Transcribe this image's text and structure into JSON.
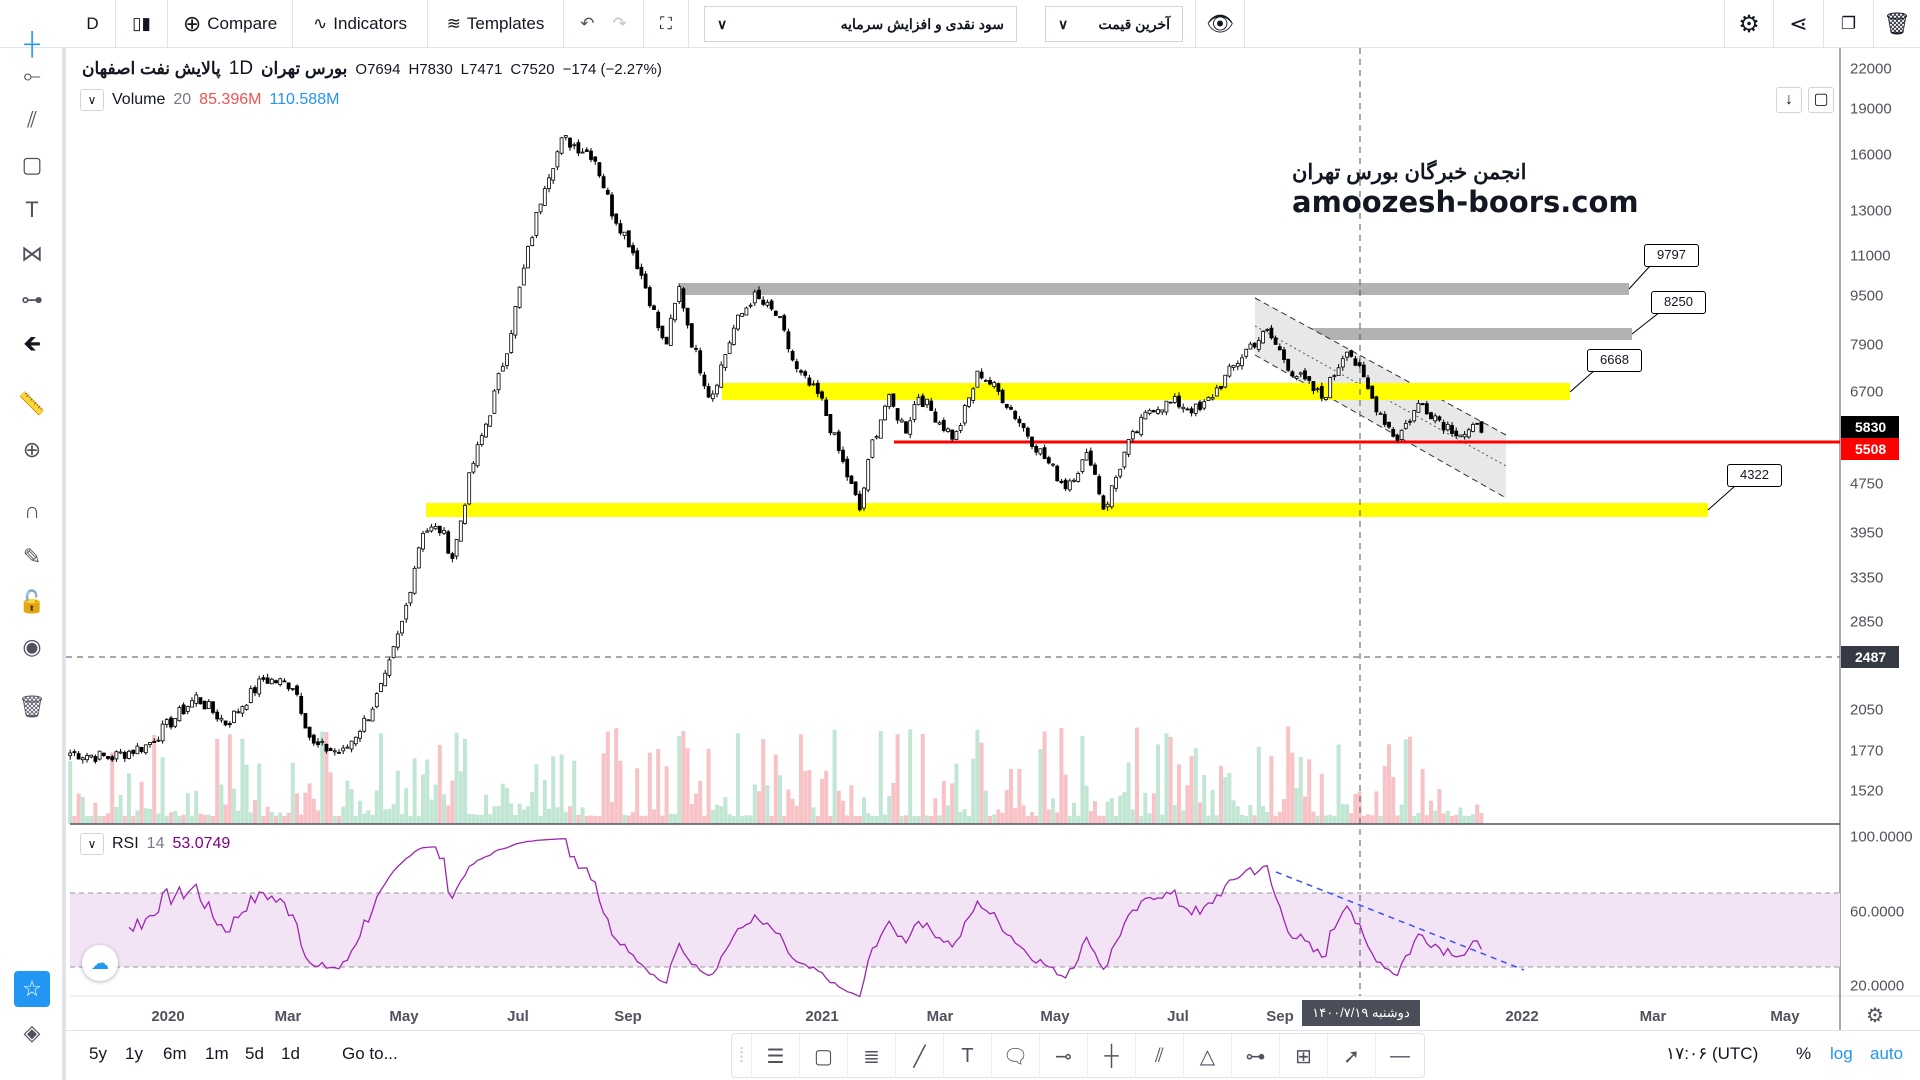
{
  "toolbar": {
    "interval": "D",
    "compare": "Compare",
    "indicators": "Indicators",
    "templates": "Templates",
    "layout_select": "سود نقدی و افزایش سرمایه",
    "price_select": "آخرین قیمت"
  },
  "legend": {
    "symbol": "پالایش نفت اصفهان",
    "interval": "1D",
    "exchange": "بورس تهران",
    "open": "O7694",
    "high": "H7830",
    "low": "L7471",
    "close": "C7520",
    "change": "−174 (−2.27%)",
    "volume_label": "Volume",
    "volume_len": "20",
    "volume_val1": "85.396M",
    "volume_val2": "110.588M"
  },
  "watermark": {
    "line1": "انجمن خبرگان بورس تهران",
    "line2": "amoozesh-boors.com"
  },
  "price_axis": [
    "22000",
    "19000",
    "16000",
    "13000",
    "11000",
    "9500",
    "7900",
    "6700",
    "4750",
    "3950",
    "3350",
    "2850",
    "2050",
    "1770",
    "1520"
  ],
  "price_badges": {
    "last": "5830",
    "line": "5508",
    "cross": "2487"
  },
  "callouts": [
    "9797",
    "8250",
    "6668",
    "4322"
  ],
  "rsi": {
    "label": "RSI",
    "len": "14",
    "value": "53.0749",
    "axis": [
      "100.0000",
      "60.0000",
      "20.0000"
    ]
  },
  "time_axis": [
    "2020",
    "Mar",
    "May",
    "Jul",
    "Sep",
    "2021",
    "Mar",
    "May",
    "Jul",
    "Sep",
    "2022",
    "Mar",
    "May"
  ],
  "crosshair_date": "دوشنبه ۱۴۰۰/۷/۱۹",
  "bottom": {
    "ranges": [
      "5y",
      "1y",
      "6m",
      "1m",
      "5d",
      "1d"
    ],
    "goto": "Go to...",
    "time": "۱۷:۰۶ (UTC)",
    "percent": "%",
    "log": "log",
    "auto": "auto"
  },
  "colors": {
    "yellow": "#ffff00",
    "red": "#ff0000",
    "gray_zone": "#b2b2b2",
    "rsi": "#9c27b0",
    "vol_up": "#c2e6d4",
    "vol_down": "#f7c3c6"
  },
  "chart_data": {
    "type": "candlestick",
    "x_unit": "months since Jan 2020",
    "scale": "log",
    "close_path": [
      [
        -1.63,
        1750
      ],
      [
        -0.96,
        1720
      ],
      [
        -0.35,
        1800
      ],
      [
        0.47,
        2150
      ],
      [
        0.98,
        1950
      ],
      [
        1.59,
        2300
      ],
      [
        2.11,
        2250
      ],
      [
        2.42,
        1800
      ],
      [
        2.95,
        1750
      ],
      [
        3.37,
        2000
      ],
      [
        3.68,
        2300
      ],
      [
        4.0,
        2900
      ],
      [
        4.32,
        4000
      ],
      [
        4.65,
        4000
      ],
      [
        4.86,
        3600
      ],
      [
        5.18,
        5000
      ],
      [
        5.51,
        6200
      ],
      [
        5.83,
        8000
      ],
      [
        6.16,
        11000
      ],
      [
        6.49,
        14500
      ],
      [
        6.82,
        17000
      ],
      [
        7.38,
        16000
      ],
      [
        7.71,
        13000
      ],
      [
        8.05,
        11500
      ],
      [
        8.43,
        9500
      ],
      [
        8.76,
        7800
      ],
      [
        9.06,
        9800
      ],
      [
        9.32,
        8000
      ],
      [
        9.7,
        6500
      ],
      [
        10.2,
        8500
      ],
      [
        10.58,
        9500
      ],
      [
        11.09,
        8800
      ],
      [
        11.47,
        7200
      ],
      [
        11.97,
        6500
      ],
      [
        12.39,
        5000
      ],
      [
        12.64,
        4300
      ],
      [
        12.85,
        5500
      ],
      [
        13.11,
        6500
      ],
      [
        13.42,
        5800
      ],
      [
        13.63,
        6600
      ],
      [
        14.04,
        5900
      ],
      [
        14.26,
        5600
      ],
      [
        14.68,
        7200
      ],
      [
        15.11,
        6500
      ],
      [
        15.64,
        5500
      ],
      [
        16.16,
        4700
      ],
      [
        16.56,
        5300
      ],
      [
        16.8,
        4300
      ],
      [
        17.16,
        5400
      ],
      [
        17.56,
        6300
      ],
      [
        17.96,
        6400
      ],
      [
        18.43,
        6200
      ],
      [
        18.92,
        7000
      ],
      [
        19.4,
        7900
      ],
      [
        19.76,
        8300
      ],
      [
        20.2,
        7200
      ],
      [
        20.71,
        6500
      ],
      [
        21.11,
        7900
      ],
      [
        21.52,
        6500
      ],
      [
        21.92,
        5600
      ],
      [
        22.32,
        6400
      ],
      [
        22.73,
        5900
      ],
      [
        23.03,
        5700
      ],
      [
        23.33,
        5830
      ]
    ],
    "levels": [
      9797,
      8250,
      6668,
      5508,
      4322
    ]
  }
}
